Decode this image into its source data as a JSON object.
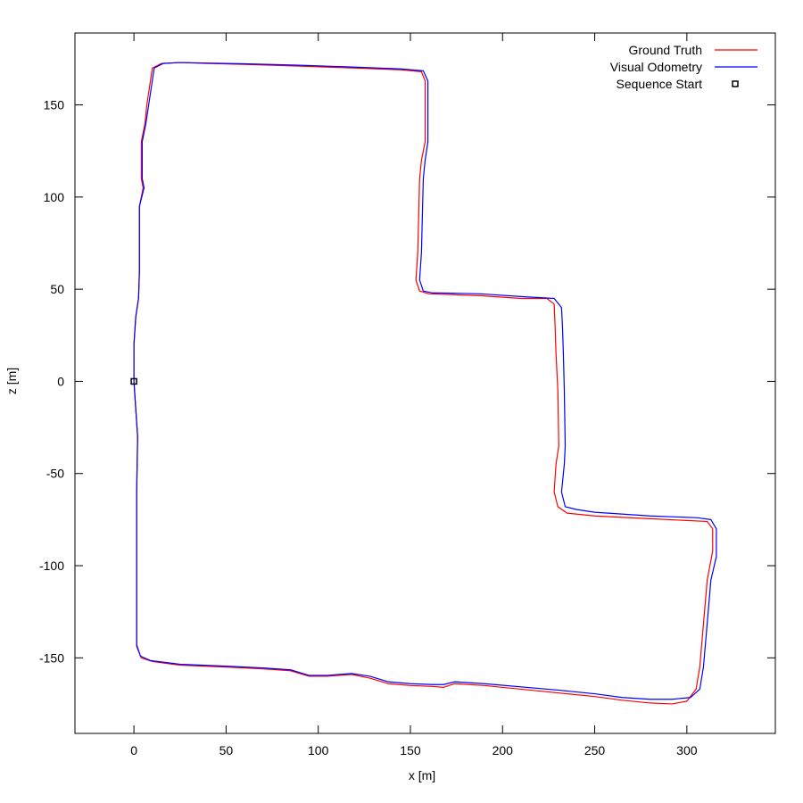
{
  "chart_data": {
    "type": "line",
    "title": "",
    "xlabel": "x [m]",
    "ylabel": "z [m]",
    "xlim": [
      -32,
      348
    ],
    "ylim": [
      -191,
      189
    ],
    "xticks": [
      0,
      50,
      100,
      150,
      200,
      250,
      300
    ],
    "yticks": [
      -150,
      -100,
      -50,
      0,
      50,
      100,
      150
    ],
    "grid": false,
    "legend_position": "top-right",
    "series": [
      {
        "name": "Ground Truth",
        "color": "#ff0000",
        "points": [
          [
            0,
            0
          ],
          [
            1,
            -15
          ],
          [
            2,
            -30
          ],
          [
            1.5,
            -60
          ],
          [
            1.5,
            -100
          ],
          [
            1.5,
            -144
          ],
          [
            4,
            -150
          ],
          [
            10,
            -152
          ],
          [
            25,
            -154
          ],
          [
            50,
            -155
          ],
          [
            70,
            -156
          ],
          [
            85,
            -157
          ],
          [
            95,
            -160
          ],
          [
            105,
            -160
          ],
          [
            118,
            -159
          ],
          [
            128,
            -161
          ],
          [
            138,
            -164
          ],
          [
            150,
            -165
          ],
          [
            162,
            -165.5
          ],
          [
            168,
            -166
          ],
          [
            174,
            -164
          ],
          [
            190,
            -165
          ],
          [
            230,
            -169
          ],
          [
            250,
            -171
          ],
          [
            265,
            -173
          ],
          [
            280,
            -174.5
          ],
          [
            292,
            -175
          ],
          [
            300,
            -173.5
          ],
          [
            305,
            -167
          ],
          [
            307,
            -155
          ],
          [
            310,
            -120
          ],
          [
            311,
            -108
          ],
          [
            314,
            -92
          ],
          [
            314,
            -80
          ],
          [
            311,
            -76
          ],
          [
            300,
            -75.5
          ],
          [
            280,
            -74.5
          ],
          [
            250,
            -73
          ],
          [
            235,
            -71.5
          ],
          [
            230,
            -68
          ],
          [
            228,
            -60
          ],
          [
            229,
            -45
          ],
          [
            230.5,
            -35
          ],
          [
            230,
            -5
          ],
          [
            229,
            15
          ],
          [
            228.5,
            30
          ],
          [
            228,
            42
          ],
          [
            224,
            45
          ],
          [
            210,
            45
          ],
          [
            188,
            46.5
          ],
          [
            175,
            47
          ],
          [
            160,
            47.5
          ],
          [
            155,
            49
          ],
          [
            153,
            55
          ],
          [
            154,
            70
          ],
          [
            155,
            110
          ],
          [
            156,
            120
          ],
          [
            158,
            130
          ],
          [
            158,
            150
          ],
          [
            158,
            163
          ],
          [
            156,
            168
          ],
          [
            145,
            169
          ],
          [
            120,
            170
          ],
          [
            90,
            171
          ],
          [
            60,
            172
          ],
          [
            40,
            172.5
          ],
          [
            25,
            173
          ],
          [
            15,
            172.5
          ],
          [
            10,
            170
          ],
          [
            8.5,
            160
          ],
          [
            7,
            150
          ],
          [
            6,
            140
          ],
          [
            4,
            130
          ],
          [
            4,
            110
          ],
          [
            5,
            105
          ],
          [
            3,
            95
          ],
          [
            3,
            60
          ],
          [
            2.5,
            45
          ],
          [
            1,
            35
          ],
          [
            0,
            20
          ],
          [
            0,
            0
          ]
        ]
      },
      {
        "name": "Visual Odometry",
        "color": "#0000ff",
        "points": [
          [
            0,
            0
          ],
          [
            1,
            -15
          ],
          [
            2,
            -30
          ],
          [
            1.5,
            -60
          ],
          [
            1.5,
            -100
          ],
          [
            1.5,
            -143
          ],
          [
            3.5,
            -149
          ],
          [
            9,
            -151.5
          ],
          [
            25,
            -153.5
          ],
          [
            50,
            -154.5
          ],
          [
            70,
            -155.5
          ],
          [
            85,
            -156.5
          ],
          [
            95,
            -159.5
          ],
          [
            105,
            -159.5
          ],
          [
            118,
            -158.5
          ],
          [
            128,
            -160
          ],
          [
            138,
            -163
          ],
          [
            150,
            -164
          ],
          [
            162,
            -164.5
          ],
          [
            168,
            -164.5
          ],
          [
            174,
            -163
          ],
          [
            190,
            -164
          ],
          [
            230,
            -167.5
          ],
          [
            250,
            -169.5
          ],
          [
            265,
            -171.5
          ],
          [
            280,
            -172.5
          ],
          [
            292,
            -172.5
          ],
          [
            302,
            -171.5
          ],
          [
            307,
            -167
          ],
          [
            309,
            -155
          ],
          [
            312,
            -120
          ],
          [
            313,
            -108
          ],
          [
            316,
            -95
          ],
          [
            316,
            -80
          ],
          [
            313,
            -75
          ],
          [
            306,
            -74
          ],
          [
            280,
            -73
          ],
          [
            250,
            -71
          ],
          [
            240,
            -69.5
          ],
          [
            234,
            -68
          ],
          [
            232,
            -60
          ],
          [
            233.5,
            -45
          ],
          [
            234,
            -35
          ],
          [
            233.5,
            -5
          ],
          [
            233,
            15
          ],
          [
            232.5,
            30
          ],
          [
            232,
            40
          ],
          [
            228,
            45
          ],
          [
            210,
            46
          ],
          [
            188,
            47.5
          ],
          [
            175,
            47.8
          ],
          [
            162,
            48
          ],
          [
            157,
            49
          ],
          [
            155,
            55
          ],
          [
            156,
            70
          ],
          [
            157,
            110
          ],
          [
            158,
            120
          ],
          [
            159.5,
            130
          ],
          [
            159.5,
            150
          ],
          [
            159.5,
            163
          ],
          [
            157,
            168.5
          ],
          [
            145,
            169.5
          ],
          [
            120,
            170.5
          ],
          [
            90,
            171.5
          ],
          [
            60,
            172.3
          ],
          [
            40,
            172.7
          ],
          [
            25,
            173
          ],
          [
            16,
            172.5
          ],
          [
            11,
            170
          ],
          [
            9.5,
            160
          ],
          [
            8,
            150
          ],
          [
            6.5,
            140
          ],
          [
            4.5,
            130
          ],
          [
            4.5,
            110
          ],
          [
            5.5,
            105
          ],
          [
            3,
            95
          ],
          [
            3,
            60
          ],
          [
            2.5,
            45
          ],
          [
            1,
            35
          ],
          [
            0,
            20
          ],
          [
            0,
            0
          ]
        ]
      }
    ],
    "markers": [
      {
        "name": "Sequence Start",
        "x": 0,
        "y": 0,
        "shape": "square",
        "color": "#000000"
      }
    ]
  }
}
